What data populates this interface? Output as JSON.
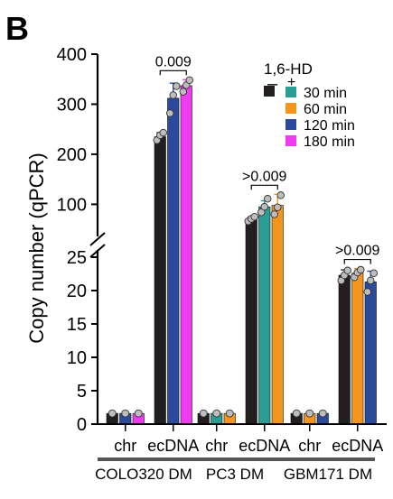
{
  "panel_label": "B",
  "chart_data": {
    "type": "bar",
    "ylabel": "Copy number (qPCR)",
    "y_axis": {
      "broken": true,
      "lower_range": [
        0,
        25
      ],
      "upper_range": [
        25,
        400
      ],
      "lower_ticks": [
        {
          "value": 0,
          "label": "0"
        },
        {
          "value": 5,
          "label": "5"
        },
        {
          "value": 10,
          "label": "10"
        },
        {
          "value": 15,
          "label": "15"
        },
        {
          "value": 20,
          "label": "20"
        },
        {
          "value": 25,
          "label": "25"
        }
      ],
      "upper_ticks": [
        {
          "value": 100,
          "label": "100"
        },
        {
          "value": 200,
          "label": "200"
        },
        {
          "value": 300,
          "label": "300"
        },
        {
          "value": 400,
          "label": "400"
        }
      ]
    },
    "legend": {
      "title": "1,6-HD",
      "minus_symbol": "–",
      "plus_symbol": "+",
      "entries": [
        {
          "label": "",
          "color": "#231f20"
        },
        {
          "label": "30 min",
          "color": "#2a9d95"
        },
        {
          "label": "60 min",
          "color": "#f4961e"
        },
        {
          "label": "120 min",
          "color": "#2c4a9a"
        },
        {
          "label": "180 min",
          "color": "#f03cf0"
        }
      ]
    },
    "groups": [
      {
        "cell_line": "COLO320 DM",
        "subgroups": [
          {
            "label": "chr",
            "bars": [
              {
                "color": "#231f20",
                "value": 1.6
              },
              {
                "color": "#2c4a9a",
                "value": 1.6
              },
              {
                "color": "#f03cf0",
                "value": 1.6
              }
            ]
          },
          {
            "label": "ecDNA",
            "bars": [
              {
                "color": "#231f20",
                "value": 235,
                "err": 8,
                "points": [
                  228,
                  238,
                  243
                ]
              },
              {
                "color": "#2c4a9a",
                "value": 312,
                "err": 30,
                "points": [
                  282,
                  318,
                  336
                ]
              },
              {
                "color": "#f03cf0",
                "value": 337,
                "err": 12,
                "points": [
                  325,
                  338,
                  348
                ]
              }
            ],
            "annotation": "0.009"
          }
        ]
      },
      {
        "cell_line": "PC3 DM",
        "subgroups": [
          {
            "label": "chr",
            "bars": [
              {
                "color": "#231f20",
                "value": 1.6
              },
              {
                "color": "#2a9d95",
                "value": 1.6
              },
              {
                "color": "#f4961e",
                "value": 1.6
              }
            ]
          },
          {
            "label": "ecDNA",
            "bars": [
              {
                "color": "#231f20",
                "value": 70,
                "err": 5,
                "points": [
                  66,
                  71,
                  75
                ]
              },
              {
                "color": "#2a9d95",
                "value": 95,
                "err": 12,
                "points": [
                  84,
                  95,
                  111
                ]
              },
              {
                "color": "#f4961e",
                "value": 98,
                "err": 22,
                "points": [
                  80,
                  94,
                  118
                ]
              }
            ],
            "annotation": ">0.009"
          }
        ]
      },
      {
        "cell_line": "GBM171 DM",
        "subgroups": [
          {
            "label": "chr",
            "bars": [
              {
                "color": "#231f20",
                "value": 1.6
              },
              {
                "color": "#f4961e",
                "value": 1.6
              },
              {
                "color": "#2c4a9a",
                "value": 1.6
              }
            ]
          },
          {
            "label": "ecDNA",
            "bars": [
              {
                "color": "#231f20",
                "value": 22.3,
                "err": 0.8,
                "points": [
                  21.5,
                  22.3,
                  23.0
                ]
              },
              {
                "color": "#f4961e",
                "value": 22.6,
                "err": 0.7,
                "points": [
                  22.0,
                  22.7,
                  23.1
                ]
              },
              {
                "color": "#2c4a9a",
                "value": 21.3,
                "err": 1.6,
                "points": [
                  19.8,
                  21.5,
                  22.6
                ]
              }
            ],
            "annotation": ">0.009"
          }
        ]
      }
    ]
  }
}
